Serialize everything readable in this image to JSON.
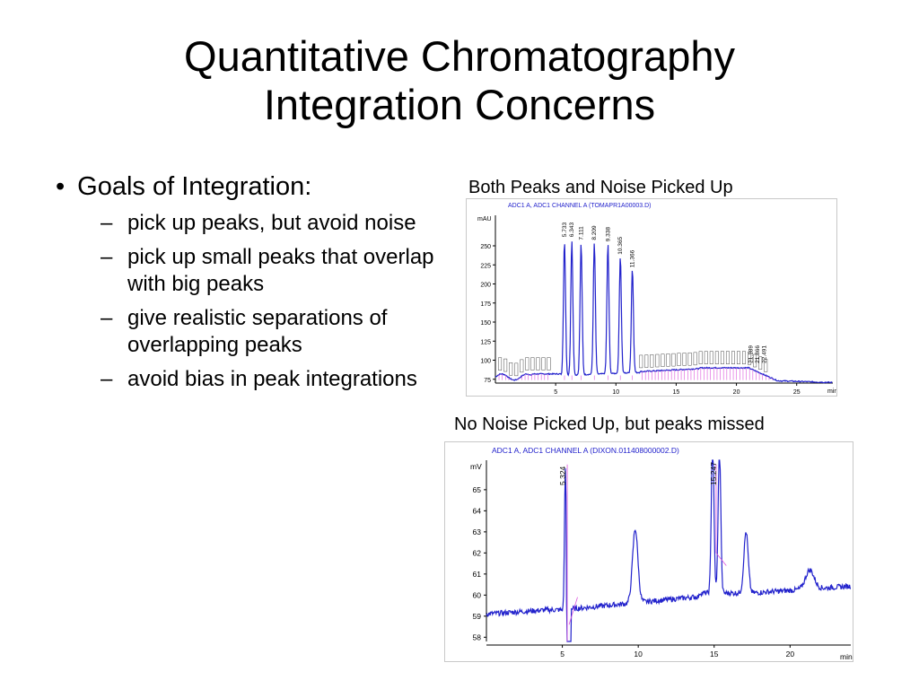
{
  "slide": {
    "title_line1": "Quantitative Chromatography",
    "title_line2": "Integration Concerns"
  },
  "bullets": {
    "main": "Goals of Integration:",
    "subs": [
      "pick up peaks, but avoid noise",
      "pick up small peaks that overlap with big peaks",
      "give realistic separations of overlapping peaks",
      "avoid bias in peak integrations"
    ]
  },
  "captions": {
    "top": "Both Peaks and Noise Picked Up",
    "bottom": "No Noise Picked Up, but peaks missed"
  },
  "colors": {
    "trace": "#2222cc",
    "markers": "#dd55dd",
    "axis": "#000000"
  },
  "chart_data": [
    {
      "type": "line",
      "header": "ADC1 A, ADC1 CHANNEL A (TOMAPR1A00003.D)",
      "ylabel": "mAU",
      "xlabel": "min",
      "xlim": [
        0,
        28
      ],
      "ylim": [
        70,
        290
      ],
      "x_ticks": [
        5,
        10,
        15,
        20,
        25
      ],
      "y_ticks": [
        75,
        100,
        125,
        150,
        175,
        200,
        225,
        250
      ],
      "peaks": [
        {
          "x": 5.733,
          "label": "5.733",
          "height": 258
        },
        {
          "x": 6.343,
          "label": "6.343",
          "height": 258
        },
        {
          "x": 7.111,
          "label": "7.111",
          "height": 254
        },
        {
          "x": 8.209,
          "label": "8.209",
          "height": 254
        },
        {
          "x": 9.338,
          "label": "9.338",
          "height": 252
        },
        {
          "x": 10.365,
          "label": "10.365",
          "height": 235
        },
        {
          "x": 11.366,
          "label": "11.366",
          "height": 218
        }
      ],
      "late_labels": [
        "21.189",
        "21.866",
        "22.491"
      ]
    },
    {
      "type": "line",
      "header": "ADC1 A, ADC1 CHANNEL A (DIXON.011408000002.D)",
      "ylabel": "mV",
      "xlabel": "min",
      "xlim": [
        0,
        24
      ],
      "ylim": [
        57.8,
        66.4
      ],
      "x_ticks": [
        5,
        10,
        15,
        20
      ],
      "y_ticks": [
        58,
        59,
        60,
        61,
        62,
        63,
        64,
        65
      ],
      "peaks": [
        {
          "x": 5.324,
          "label": "5.324"
        },
        {
          "x": 15.247,
          "label": "15.247"
        }
      ]
    }
  ]
}
